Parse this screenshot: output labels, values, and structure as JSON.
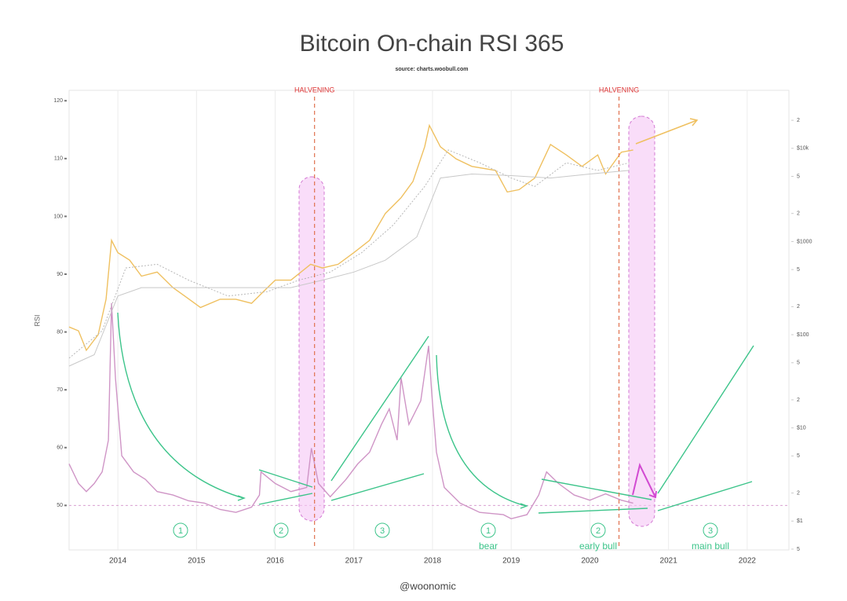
{
  "chart_data": {
    "type": "line",
    "title": "Bitcoin On-chain RSI 365",
    "subtitle": "source: charts.woobull.com",
    "y_label": "RSI",
    "credit": "@woonomic",
    "xlim": [
      2013.38,
      2022.53
    ],
    "xticks": [
      2014,
      2015,
      2016,
      2017,
      2018,
      2019,
      2020,
      2021,
      2022
    ],
    "ylim": [
      42.3,
      121.8
    ],
    "yticks": [
      50,
      60,
      70,
      80,
      90,
      100,
      110,
      120
    ],
    "y2lim": [
      0.49,
      41900
    ],
    "y2scale": "log",
    "y2ticks": [
      {
        "value": 0.5,
        "label": "5"
      },
      {
        "value": 1,
        "label": "$1"
      },
      2,
      5,
      {
        "value": 10,
        "label": "$10"
      },
      {
        "value": 20,
        "label": "2"
      },
      {
        "value": 50,
        "label": "5"
      },
      {
        "value": 100,
        "label": "$100"
      },
      {
        "value": 200,
        "label": "2"
      },
      {
        "value": 500,
        "label": "5"
      },
      {
        "value": 1000,
        "label": "$1000"
      },
      {
        "value": 2000,
        "label": "2"
      },
      {
        "value": 5000,
        "label": "5"
      },
      {
        "value": 10000,
        "label": "$10k"
      },
      {
        "value": 20000,
        "label": "2"
      }
    ],
    "grid": true,
    "hline": 50,
    "annotations": [
      {
        "text": "HALVENING",
        "x": 2016.5
      },
      {
        "text": "HALVENING",
        "x": 2020.37
      }
    ],
    "phases": [
      {
        "label": "1"
      },
      {
        "label": "2"
      },
      {
        "label": "3"
      },
      {
        "label": "1",
        "caption": "bear"
      },
      {
        "label": "2",
        "caption": "early bull"
      },
      {
        "label": "3",
        "caption": "main bull"
      }
    ],
    "series": [
      {
        "color": "#cf95c6",
        "axis": "y",
        "dash": false,
        "x": [
          2013.38,
          2013.5,
          2013.6,
          2013.7,
          2013.8,
          2013.88,
          2013.92,
          2013.97,
          2014.05,
          2014.2,
          2014.35,
          2014.5,
          2014.7,
          2014.9,
          2015.1,
          2015.3,
          2015.5,
          2015.7,
          2015.8,
          2015.82,
          2016.0,
          2016.2,
          2016.4,
          2016.46,
          2016.55,
          2016.7,
          2016.9,
          2017.05,
          2017.2,
          2017.35,
          2017.45,
          2017.55,
          2017.6,
          2017.7,
          2017.85,
          2017.95,
          2017.99,
          2018.05,
          2018.15,
          2018.35,
          2018.6,
          2018.9,
          2019.0,
          2019.2,
          2019.35,
          2019.45,
          2019.6,
          2019.8,
          2020.0,
          2020.2,
          2020.4,
          2020.55
        ],
        "values": [
          57.2,
          53.8,
          52.4,
          53.8,
          55.8,
          61.3,
          85,
          72,
          58.6,
          55.8,
          54.5,
          52.4,
          51.8,
          50.8,
          50.4,
          49.3,
          48.8,
          49.7,
          51.8,
          55.8,
          53.8,
          52.4,
          53.1,
          59.9,
          53.8,
          51.5,
          54.5,
          57.2,
          59.2,
          64,
          66.7,
          61.3,
          72.1,
          64,
          68.1,
          77.6,
          69.4,
          59.2,
          53.1,
          50.4,
          48.8,
          48.4,
          47.7,
          48.4,
          51.8,
          55.8,
          53.8,
          51.8,
          50.9,
          52,
          50.9,
          50.4
        ]
      },
      {
        "color": "#efc060",
        "axis": "y2",
        "dash": false,
        "x": [
          2013.38,
          2013.5,
          2013.6,
          2013.75,
          2013.85,
          2013.92,
          2014.0,
          2014.15,
          2014.3,
          2014.5,
          2014.7,
          2014.85,
          2015.05,
          2015.3,
          2015.5,
          2015.7,
          2015.85,
          2016.0,
          2016.2,
          2016.45,
          2016.6,
          2016.8,
          2017.0,
          2017.2,
          2017.4,
          2017.6,
          2017.75,
          2017.9,
          2017.96,
          2018.1,
          2018.3,
          2018.5,
          2018.8,
          2018.95,
          2019.1,
          2019.3,
          2019.5,
          2019.7,
          2019.9,
          2020.1,
          2020.2,
          2020.4,
          2020.55
        ],
        "values": [
          121,
          110,
          68,
          100,
          240,
          1030,
          760,
          630,
          425,
          470,
          320,
          260,
          196,
          240,
          240,
          217,
          290,
          385,
          385,
          570,
          520,
          570,
          760,
          1030,
          2000,
          2950,
          4400,
          10400,
          17600,
          10400,
          7700,
          6400,
          5800,
          3400,
          3600,
          4800,
          11000,
          8500,
          6400,
          8500,
          5300,
          9100,
          9600
        ]
      },
      {
        "color": "#c8c8c8",
        "axis": "y2",
        "dash": false,
        "x": [
          2013.38,
          2013.7,
          2014.0,
          2014.3,
          2014.7,
          2015.2,
          2015.7,
          2016.2,
          2016.6,
          2017.0,
          2017.4,
          2017.8,
          2018.1,
          2018.5,
          2019.0,
          2019.5,
          2020.0,
          2020.5
        ],
        "values": [
          46,
          61,
          260,
          320,
          320,
          320,
          320,
          320,
          385,
          470,
          630,
          1120,
          4800,
          5300,
          5100,
          4800,
          5300,
          5800
        ]
      },
      {
        "color": "#b8b8b8",
        "axis": "y2",
        "dash": true,
        "x": [
          2013.38,
          2013.8,
          2014.1,
          2014.5,
          2014.9,
          2015.4,
          2015.9,
          2016.3,
          2016.7,
          2017.1,
          2017.5,
          2017.9,
          2018.2,
          2018.6,
          2019.0,
          2019.3,
          2019.7,
          2020.1,
          2020.5
        ],
        "values": [
          56,
          110,
          520,
          570,
          385,
          260,
          290,
          385,
          470,
          760,
          1500,
          3900,
          9600,
          7000,
          4800,
          3900,
          7000,
          5800,
          7000
        ]
      }
    ]
  }
}
